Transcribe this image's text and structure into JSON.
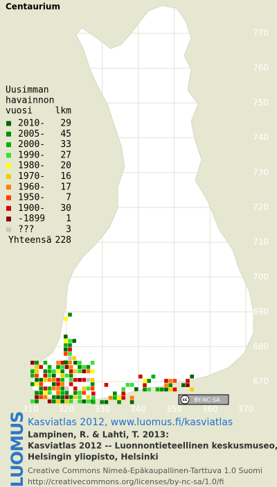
{
  "title": "Centaurium",
  "legend": {
    "heading": [
      "Uusimman",
      "havainnon"
    ],
    "year_header": "vuosi",
    "count_header": "lkm",
    "rows": [
      {
        "label": "2010-",
        "count": 29,
        "color": "#006400"
      },
      {
        "label": "2005-",
        "count": 45,
        "color": "#008c00"
      },
      {
        "label": "2000-",
        "count": 33,
        "color": "#00b400"
      },
      {
        "label": "1990-",
        "count": 27,
        "color": "#3ade3a"
      },
      {
        "label": "1980-",
        "count": 20,
        "color": "#ffff00"
      },
      {
        "label": "1970-",
        "count": 16,
        "color": "#f0d000"
      },
      {
        "label": "1960-",
        "count": 17,
        "color": "#ff7f00"
      },
      {
        "label": "1950-",
        "count": 7,
        "color": "#ff3c00"
      },
      {
        "label": "1900-",
        "count": 30,
        "color": "#d80000"
      },
      {
        "label": "-1899",
        "count": 1,
        "color": "#8c0000"
      },
      {
        "label": "???",
        "count": 3,
        "color": "#c8c8c8"
      }
    ],
    "total": {
      "label": "Yhteensä",
      "count": 228
    }
  },
  "grid": {
    "north_labels": [
      770,
      760,
      750,
      740,
      730,
      720,
      710,
      700,
      690,
      680,
      670
    ],
    "east_labels": [
      310,
      320,
      330,
      340,
      350,
      360,
      370
    ]
  },
  "badge": "BY-NC-SA",
  "logo": "LUOMUS",
  "footer": {
    "link": "Kasviatlas 2012, www.luomus.fi/kasviatlas",
    "citation": [
      "Lampinen, R. & Lahti, T. 2013:",
      "Kasviatlas 2012 -- Luonnontieteellinen keskusmuseo,",
      "Helsingin yliopisto, Helsinki"
    ],
    "license": [
      "Creative Commons Nimeä-Epäkaupallinen-Tarttuva 1.0 Suomi",
      "http://creativecommons.org/licenses/by-nc-sa/1.0/fi"
    ]
  }
}
